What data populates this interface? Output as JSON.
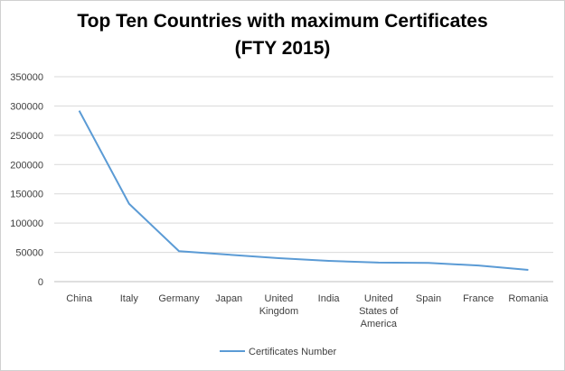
{
  "chart_data": {
    "type": "line",
    "title_line1": "Top Ten Countries with maximum Certificates",
    "title_line2": "(FTY 2015)",
    "categories": [
      "China",
      "Italy",
      "Germany",
      "Japan",
      "United Kingdom",
      "India",
      "United States of America",
      "Spain",
      "France",
      "Romania"
    ],
    "category_lines": [
      [
        "China"
      ],
      [
        "Italy"
      ],
      [
        "Germany"
      ],
      [
        "Japan"
      ],
      [
        "United",
        "Kingdom"
      ],
      [
        "India"
      ],
      [
        "United",
        "States of",
        "America"
      ],
      [
        "Spain"
      ],
      [
        "France"
      ],
      [
        "Romania"
      ]
    ],
    "series": [
      {
        "name": "Certificates Number",
        "values": [
          292000,
          133000,
          52000,
          46000,
          40000,
          35500,
          32500,
          32000,
          27500,
          20000
        ]
      }
    ],
    "ylim": [
      0,
      350000
    ],
    "yticks": [
      0,
      50000,
      100000,
      150000,
      200000,
      250000,
      300000,
      350000
    ],
    "grid": true,
    "legend_position": "bottom",
    "colors": {
      "line": "#5b9bd5",
      "grid": "#d9d9d9",
      "axis": "#bfbfbf"
    }
  }
}
